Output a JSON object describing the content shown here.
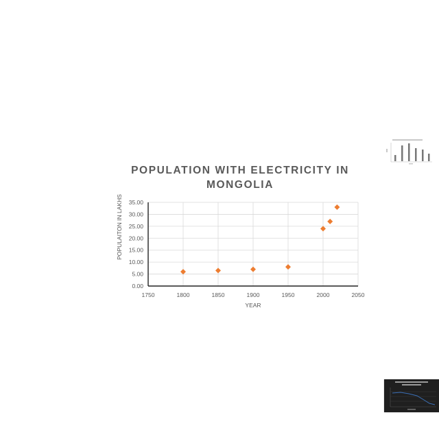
{
  "chart_data": {
    "type": "scatter",
    "title": "POPULATION WITH ELECTRICITY IN MONGOLIA",
    "xlabel": "YEAR",
    "ylabel": "POPULAITON IN LAKHS",
    "xlim": [
      1750,
      2050
    ],
    "ylim": [
      0,
      35
    ],
    "xticks": [
      "1750",
      "1800",
      "1850",
      "1900",
      "1950",
      "2000",
      "2050"
    ],
    "yticks": [
      "0.00",
      "5.00",
      "10.00",
      "15.00",
      "20.00",
      "25.00",
      "30.00",
      "35.00"
    ],
    "grid": true,
    "legend": "none",
    "marker": "diamond",
    "marker_color": "#ED7D31",
    "series": [
      {
        "x": [
          1800,
          1850,
          1900,
          1950,
          2000,
          2010,
          2020
        ],
        "y": [
          6.0,
          6.5,
          7.0,
          8.0,
          24.0,
          27.0,
          33.0
        ]
      }
    ]
  },
  "thumbnails": [
    {
      "name": "thumbnail-light-chart"
    },
    {
      "name": "thumbnail-dark-chart"
    }
  ]
}
